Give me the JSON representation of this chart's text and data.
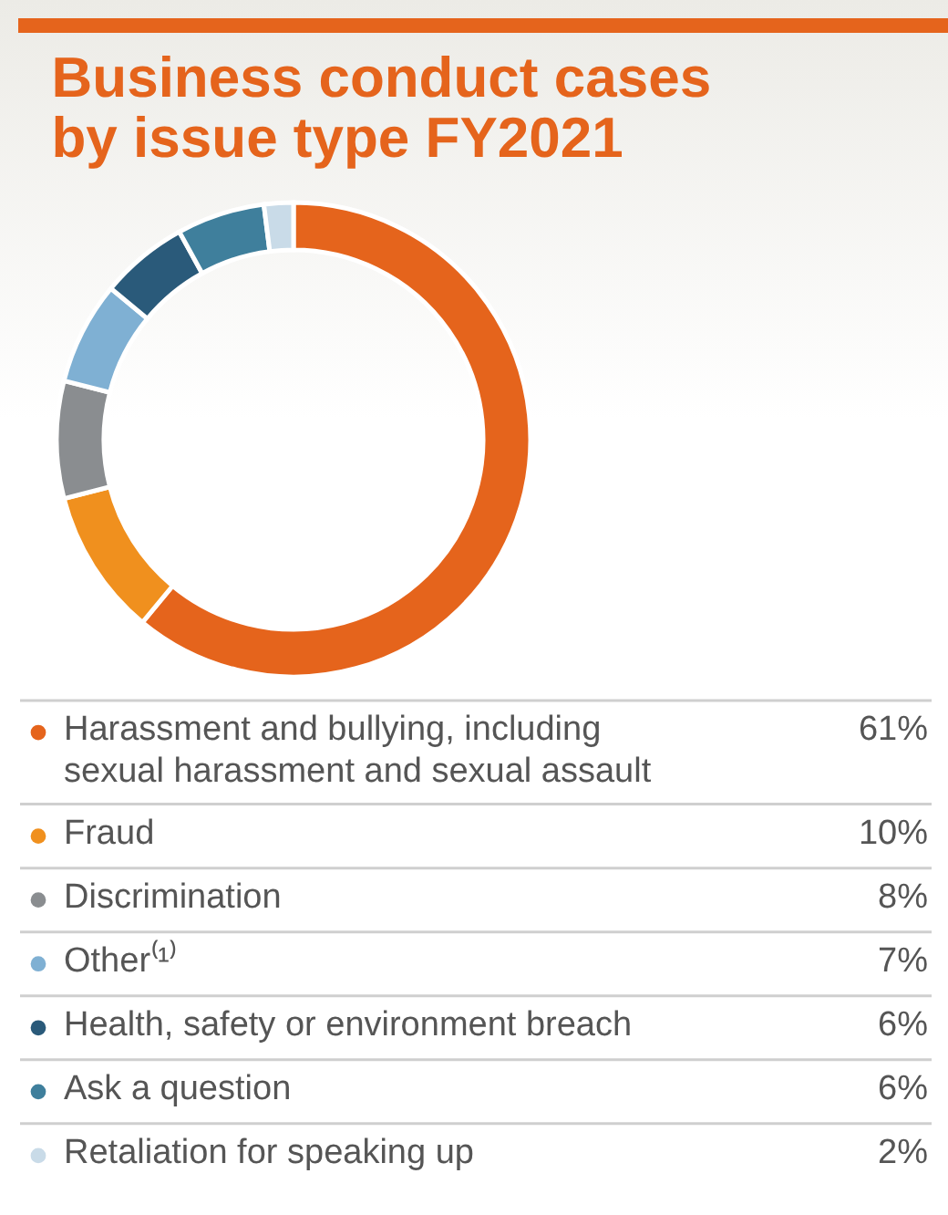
{
  "chart_data": {
    "type": "donut",
    "title": "Business conduct cases by issue type FY2021",
    "categories": [
      "Harassment and bullying, including sexual harassment and sexual assault",
      "Fraud",
      "Discrimination",
      "Other⁽¹⁾",
      "Health, safety or environment breach",
      "Ask a question",
      "Retaliation for speaking up"
    ],
    "values": [
      61,
      10,
      8,
      7,
      6,
      6,
      2
    ],
    "colors": [
      "#e5641c",
      "#f0901e",
      "#8a8d90",
      "#7fb0d3",
      "#2a5a7a",
      "#3f7f9c",
      "#c9dbe8"
    ],
    "value_labels": [
      "61%",
      "10%",
      "8%",
      "7%",
      "6%",
      "6%",
      "2%"
    ],
    "legend": "bottom"
  }
}
